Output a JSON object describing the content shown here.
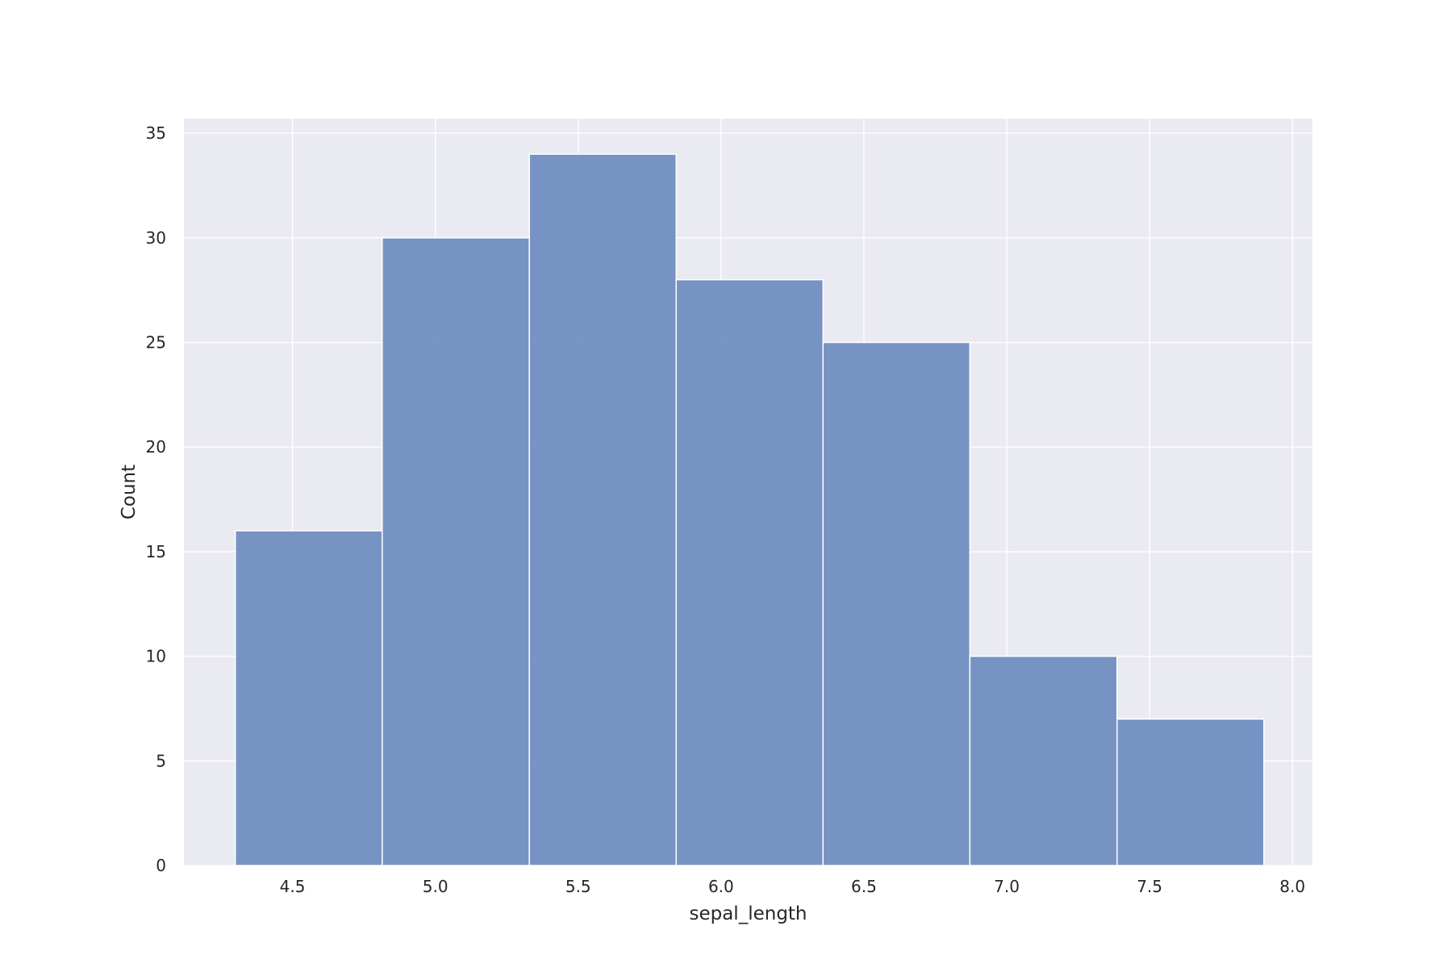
{
  "chart_data": {
    "type": "bar",
    "title": "",
    "xlabel": "sepal_length",
    "ylabel": "Count",
    "bins": [
      {
        "start": 4.3,
        "end": 4.814,
        "count": 16
      },
      {
        "start": 4.814,
        "end": 5.329,
        "count": 30
      },
      {
        "start": 5.329,
        "end": 5.843,
        "count": 34
      },
      {
        "start": 5.843,
        "end": 6.357,
        "count": 28
      },
      {
        "start": 6.357,
        "end": 6.871,
        "count": 25
      },
      {
        "start": 6.871,
        "end": 7.386,
        "count": 10
      },
      {
        "start": 7.386,
        "end": 7.9,
        "count": 7
      }
    ],
    "xlim": [
      4.12,
      8.07
    ],
    "ylim": [
      0,
      35.7
    ],
    "xticks": [
      "4.5",
      "5.0",
      "5.5",
      "6.0",
      "6.5",
      "7.0",
      "7.5",
      "8.0"
    ],
    "yticks": [
      "0",
      "5",
      "10",
      "15",
      "20",
      "25",
      "30",
      "35"
    ],
    "grid": true,
    "colors": {
      "bar": "#6a89be",
      "background": "#eaeaf2",
      "grid": "#ffffff"
    }
  }
}
